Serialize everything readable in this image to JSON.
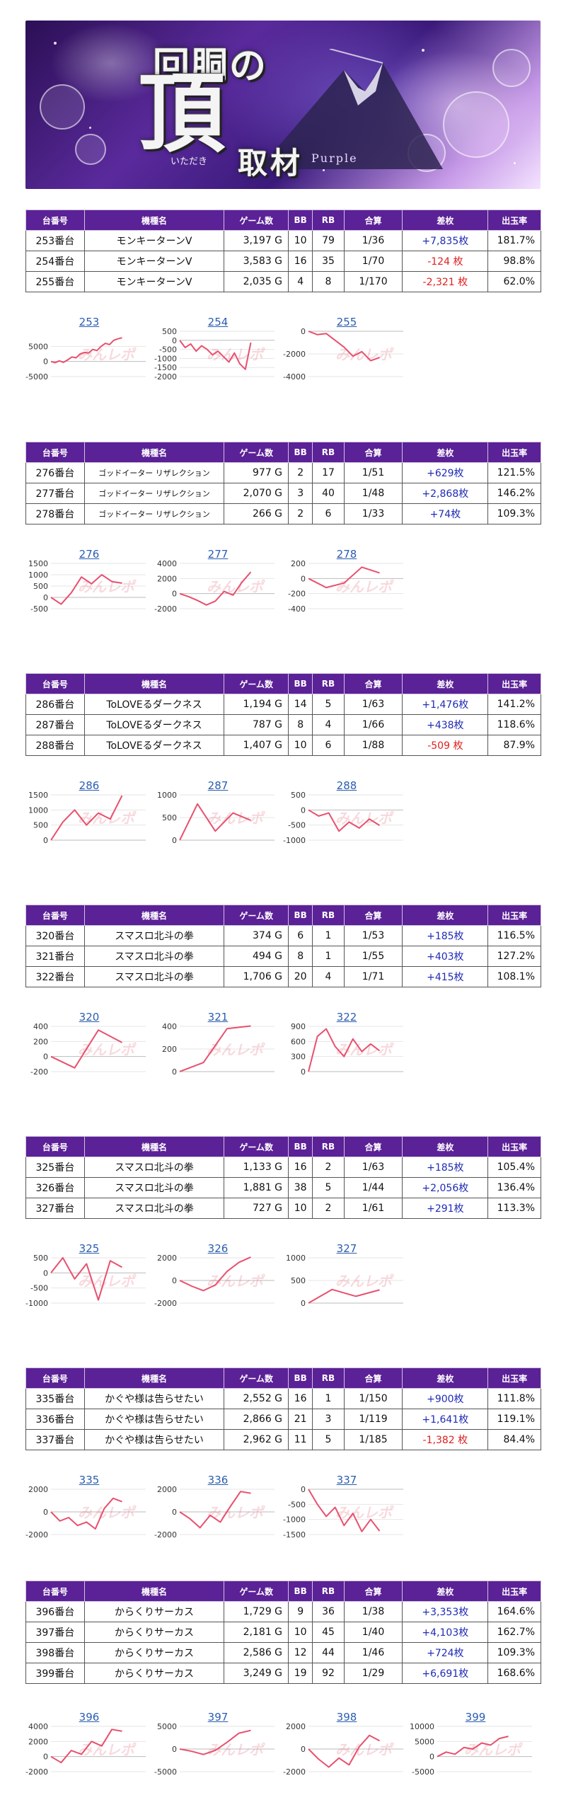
{
  "banner": {
    "title_line1": "回胴の",
    "title_big": "頂",
    "title_sub": "取材",
    "title_small": "いただき",
    "title_purple": "Purple"
  },
  "headers": [
    "台番号",
    "機種名",
    "ゲーム数",
    "BB",
    "RB",
    "合算",
    "差枚",
    "出玉率"
  ],
  "groups": [
    {
      "rows": [
        {
          "no": "253番台",
          "machine": "モンキーターンV",
          "games": "3,197 G",
          "bb": "10",
          "rb": "79",
          "ratio": "1/36",
          "diff": "+7,835枚",
          "rate": "181.7%"
        },
        {
          "no": "254番台",
          "machine": "モンキーターンV",
          "games": "3,583 G",
          "bb": "16",
          "rb": "35",
          "ratio": "1/70",
          "diff": "-124 枚",
          "rate": "98.8%"
        },
        {
          "no": "255番台",
          "machine": "モンキーターンV",
          "games": "2,035 G",
          "bb": "4",
          "rb": "8",
          "ratio": "1/170",
          "diff": "-2,321 枚",
          "rate": "62.0%"
        }
      ],
      "graphs": [
        {
          "label": "253",
          "ticks": [
            "5000",
            "0",
            "-5000"
          ],
          "ymin": -5000,
          "ymax": 10000,
          "points": [
            0,
            -400,
            200,
            -300,
            500,
            1500,
            1200,
            2500,
            3000,
            2800,
            4000,
            3600,
            5000,
            6000,
            5600,
            7000,
            7500,
            7835
          ]
        },
        {
          "label": "254",
          "ticks": [
            "500",
            "0",
            "-500",
            "-1000",
            "-1500",
            "-2000"
          ],
          "ymin": -2000,
          "ymax": 500,
          "points": [
            0,
            -400,
            -200,
            -600,
            -300,
            -500,
            -800,
            -600,
            -900,
            -1200,
            -700,
            -1300,
            -1600,
            -124
          ]
        },
        {
          "label": "255",
          "ticks": [
            "0",
            "-2000",
            "-4000"
          ],
          "ymin": -4000,
          "ymax": 0,
          "points": [
            0,
            -300,
            -200,
            -800,
            -1400,
            -2200,
            -1800,
            -2600,
            -2321
          ]
        }
      ]
    },
    {
      "small_name": true,
      "rows": [
        {
          "no": "276番台",
          "machine": "ゴッドイーター リザレクション",
          "games": "977 G",
          "bb": "2",
          "rb": "17",
          "ratio": "1/51",
          "diff": "+629枚",
          "rate": "121.5%"
        },
        {
          "no": "277番台",
          "machine": "ゴッドイーター リザレクション",
          "games": "2,070 G",
          "bb": "3",
          "rb": "40",
          "ratio": "1/48",
          "diff": "+2,868枚",
          "rate": "146.2%"
        },
        {
          "no": "278番台",
          "machine": "ゴッドイーター リザレクション",
          "games": "266 G",
          "bb": "2",
          "rb": "6",
          "ratio": "1/33",
          "diff": "+74枚",
          "rate": "109.3%"
        }
      ],
      "graphs": [
        {
          "label": "276",
          "ticks": [
            "1500",
            "1000",
            "500",
            "0",
            "-500"
          ],
          "ymin": -500,
          "ymax": 1500,
          "points": [
            0,
            -300,
            200,
            900,
            600,
            1000,
            700,
            629
          ]
        },
        {
          "label": "277",
          "ticks": [
            "4000",
            "2000",
            "0",
            "-2000"
          ],
          "ymin": -2000,
          "ymax": 4000,
          "points": [
            0,
            -400,
            -900,
            -1500,
            -1000,
            300,
            -200,
            1500,
            2868
          ]
        },
        {
          "label": "278",
          "ticks": [
            "200",
            "0",
            "-200",
            "-400"
          ],
          "ymin": -400,
          "ymax": 200,
          "points": [
            0,
            -120,
            -60,
            150,
            74
          ]
        }
      ]
    },
    {
      "rows": [
        {
          "no": "286番台",
          "machine": "ToLOVEるダークネス",
          "games": "1,194 G",
          "bb": "14",
          "rb": "5",
          "ratio": "1/63",
          "diff": "+1,476枚",
          "rate": "141.2%"
        },
        {
          "no": "287番台",
          "machine": "ToLOVEるダークネス",
          "games": "787 G",
          "bb": "8",
          "rb": "4",
          "ratio": "1/66",
          "diff": "+438枚",
          "rate": "118.6%"
        },
        {
          "no": "288番台",
          "machine": "ToLOVEるダークネス",
          "games": "1,407 G",
          "bb": "10",
          "rb": "6",
          "ratio": "1/88",
          "diff": "-509 枚",
          "rate": "87.9%"
        }
      ],
      "graphs": [
        {
          "label": "286",
          "ticks": [
            "1500",
            "1000",
            "500",
            "0"
          ],
          "ymin": 0,
          "ymax": 1500,
          "points": [
            0,
            600,
            1000,
            500,
            900,
            700,
            1476
          ]
        },
        {
          "label": "287",
          "ticks": [
            "1000",
            "500",
            "0"
          ],
          "ymin": 0,
          "ymax": 1000,
          "points": [
            0,
            800,
            200,
            600,
            438
          ]
        },
        {
          "label": "288",
          "ticks": [
            "500",
            "0",
            "-500",
            "-1000"
          ],
          "ymin": -1000,
          "ymax": 500,
          "points": [
            0,
            -200,
            -100,
            -700,
            -400,
            -600,
            -300,
            -509
          ]
        }
      ]
    },
    {
      "rows": [
        {
          "no": "320番台",
          "machine": "スマスロ北斗の拳",
          "games": "374 G",
          "bb": "6",
          "rb": "1",
          "ratio": "1/53",
          "diff": "+185枚",
          "rate": "116.5%"
        },
        {
          "no": "321番台",
          "machine": "スマスロ北斗の拳",
          "games": "494 G",
          "bb": "8",
          "rb": "1",
          "ratio": "1/55",
          "diff": "+403枚",
          "rate": "127.2%"
        },
        {
          "no": "322番台",
          "machine": "スマスロ北斗の拳",
          "games": "1,706 G",
          "bb": "20",
          "rb": "4",
          "ratio": "1/71",
          "diff": "+415枚",
          "rate": "108.1%"
        }
      ],
      "graphs": [
        {
          "label": "320",
          "ticks": [
            "400",
            "200",
            "0",
            "-200"
          ],
          "ymin": -200,
          "ymax": 400,
          "points": [
            0,
            -150,
            350,
            185
          ]
        },
        {
          "label": "321",
          "ticks": [
            "400",
            "200",
            "0"
          ],
          "ymin": 0,
          "ymax": 400,
          "points": [
            0,
            80,
            380,
            403
          ]
        },
        {
          "label": "322",
          "ticks": [
            "900",
            "600",
            "300",
            "0"
          ],
          "ymin": 0,
          "ymax": 900,
          "points": [
            0,
            700,
            850,
            500,
            300,
            650,
            400,
            550,
            415
          ]
        }
      ]
    },
    {
      "rows": [
        {
          "no": "325番台",
          "machine": "スマスロ北斗の拳",
          "games": "1,133 G",
          "bb": "16",
          "rb": "2",
          "ratio": "1/63",
          "diff": "+185枚",
          "rate": "105.4%"
        },
        {
          "no": "326番台",
          "machine": "スマスロ北斗の拳",
          "games": "1,881 G",
          "bb": "38",
          "rb": "5",
          "ratio": "1/44",
          "diff": "+2,056枚",
          "rate": "136.4%"
        },
        {
          "no": "327番台",
          "machine": "スマスロ北斗の拳",
          "games": "727 G",
          "bb": "10",
          "rb": "2",
          "ratio": "1/61",
          "diff": "+291枚",
          "rate": "113.3%"
        }
      ],
      "graphs": [
        {
          "label": "325",
          "ticks": [
            "500",
            "0",
            "-500",
            "-1000"
          ],
          "ymin": -1000,
          "ymax": 500,
          "points": [
            0,
            500,
            -200,
            300,
            -900,
            400,
            185
          ]
        },
        {
          "label": "326",
          "ticks": [
            "2000",
            "0",
            "-2000"
          ],
          "ymin": -2000,
          "ymax": 2000,
          "points": [
            0,
            -500,
            -900,
            -400,
            800,
            1600,
            2056
          ]
        },
        {
          "label": "327",
          "ticks": [
            "1000",
            "500",
            "0"
          ],
          "ymin": 0,
          "ymax": 1000,
          "points": [
            0,
            300,
            150,
            291
          ]
        }
      ]
    },
    {
      "rows": [
        {
          "no": "335番台",
          "machine": "かぐや様は告らせたい",
          "games": "2,552 G",
          "bb": "16",
          "rb": "1",
          "ratio": "1/150",
          "diff": "+900枚",
          "rate": "111.8%"
        },
        {
          "no": "336番台",
          "machine": "かぐや様は告らせたい",
          "games": "2,866 G",
          "bb": "21",
          "rb": "3",
          "ratio": "1/119",
          "diff": "+1,641枚",
          "rate": "119.1%"
        },
        {
          "no": "337番台",
          "machine": "かぐや様は告らせたい",
          "games": "2,962 G",
          "bb": "11",
          "rb": "5",
          "ratio": "1/185",
          "diff": "-1,382 枚",
          "rate": "84.4%"
        }
      ],
      "graphs": [
        {
          "label": "335",
          "ticks": [
            "2000",
            "0",
            "-2000"
          ],
          "ymin": -2000,
          "ymax": 2000,
          "points": [
            0,
            -800,
            -500,
            -1200,
            -900,
            -1500,
            300,
            1200,
            900
          ]
        },
        {
          "label": "336",
          "ticks": [
            "2000",
            "0",
            "-2000"
          ],
          "ymin": -2000,
          "ymax": 2000,
          "points": [
            0,
            -600,
            -1400,
            -300,
            -900,
            500,
            1800,
            1641
          ]
        },
        {
          "label": "337",
          "ticks": [
            "0",
            "-500",
            "-1000",
            "-1500"
          ],
          "ymin": -1500,
          "ymax": 0,
          "points": [
            0,
            -500,
            -900,
            -600,
            -1200,
            -800,
            -1400,
            -1000,
            -1382
          ]
        }
      ]
    },
    {
      "rows": [
        {
          "no": "396番台",
          "machine": "からくりサーカス",
          "games": "1,729 G",
          "bb": "9",
          "rb": "36",
          "ratio": "1/38",
          "diff": "+3,353枚",
          "rate": "164.6%"
        },
        {
          "no": "397番台",
          "machine": "からくりサーカス",
          "games": "2,181 G",
          "bb": "10",
          "rb": "45",
          "ratio": "1/40",
          "diff": "+4,103枚",
          "rate": "162.7%"
        },
        {
          "no": "398番台",
          "machine": "からくりサーカス",
          "games": "2,586 G",
          "bb": "12",
          "rb": "44",
          "ratio": "1/46",
          "diff": "+724枚",
          "rate": "109.3%"
        },
        {
          "no": "399番台",
          "machine": "からくりサーカス",
          "games": "3,249 G",
          "bb": "19",
          "rb": "92",
          "ratio": "1/29",
          "diff": "+6,691枚",
          "rate": "168.6%"
        }
      ],
      "graphs": [
        {
          "label": "396",
          "ticks": [
            "4000",
            "2000",
            "0",
            "-2000"
          ],
          "ymin": -2000,
          "ymax": 4000,
          "points": [
            0,
            -800,
            800,
            300,
            2000,
            1400,
            3600,
            3353
          ]
        },
        {
          "label": "397",
          "ticks": [
            "5000",
            "0",
            "-5000"
          ],
          "ymin": -5000,
          "ymax": 5000,
          "points": [
            0,
            -500,
            -1200,
            -300,
            1500,
            3500,
            4103
          ]
        },
        {
          "label": "398",
          "ticks": [
            "2000",
            "0",
            "-2000"
          ],
          "ymin": -2000,
          "ymax": 2000,
          "points": [
            0,
            -900,
            -1600,
            -800,
            -1400,
            200,
            1200,
            724
          ]
        },
        {
          "label": "399",
          "ticks": [
            "10000",
            "5000",
            "0",
            "-5000"
          ],
          "ymin": -5000,
          "ymax": 10000,
          "points": [
            0,
            1500,
            800,
            3000,
            2500,
            4500,
            3800,
            6000,
            6691
          ]
        }
      ]
    }
  ],
  "watermark": "みんレポ",
  "colors": {
    "header_bg": "#5b2196",
    "positive": "#1f2bb5",
    "negative": "#e02020",
    "line": "#e8506e",
    "label": "#2a5db0"
  }
}
